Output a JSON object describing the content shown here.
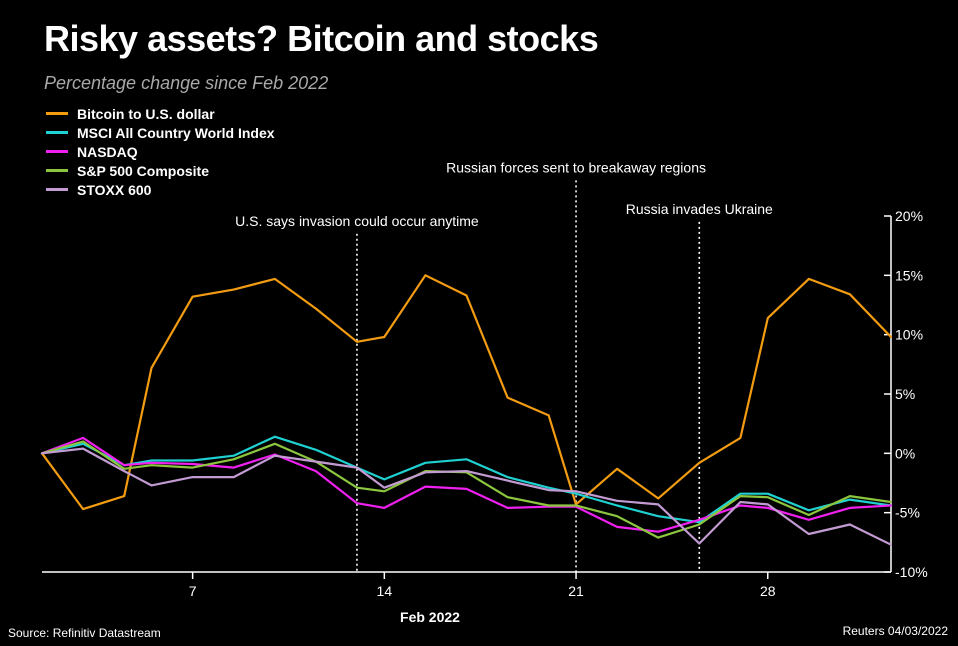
{
  "title": "Risky assets? Bitcoin and stocks",
  "subtitle": "Percentage change since Feb 2022",
  "source": "Source: Refinitiv Datastream",
  "credit": "Reuters 04/03/2022",
  "chart_data": {
    "type": "line",
    "xlabel": "Feb 2022",
    "x_ticks": [
      {
        "day": 7,
        "label": "7"
      },
      {
        "day": 14,
        "label": "14"
      },
      {
        "day": 21,
        "label": "21"
      },
      {
        "day": 28,
        "label": "28"
      }
    ],
    "xlim": [
      1.5,
      32.5
    ],
    "ylim": [
      -10,
      20
    ],
    "y_ticks": [
      {
        "value": 20,
        "label": "20%"
      },
      {
        "value": 15,
        "label": "15%"
      },
      {
        "value": 10,
        "label": "10%"
      },
      {
        "value": 5,
        "label": "5%"
      },
      {
        "value": 0,
        "label": "0%"
      },
      {
        "value": -5,
        "label": "-5%"
      },
      {
        "value": -10,
        "label": "-10%"
      }
    ],
    "x": [
      1.5,
      3,
      4.5,
      5.5,
      7,
      8.5,
      10,
      11.5,
      13,
      14,
      15.5,
      17,
      18.5,
      20,
      21,
      22.5,
      24,
      25.5,
      27,
      28,
      29.5,
      31,
      32.5
    ],
    "series": [
      {
        "name": "Bitcoin to U.S. dollar",
        "color": "#f39c12",
        "values": [
          0,
          -4.7,
          -3.6,
          7.2,
          13.2,
          13.8,
          14.7,
          12.2,
          9.4,
          9.8,
          15.0,
          13.3,
          4.7,
          3.2,
          -4.3,
          -1.3,
          -3.8,
          -0.8,
          1.3,
          11.4,
          14.7,
          13.4,
          9.8
        ]
      },
      {
        "name": "MSCI All Country World Index",
        "color": "#1fd1d1",
        "values": [
          0,
          0.8,
          -1.0,
          -0.6,
          -0.6,
          -0.2,
          1.4,
          0.3,
          -1.2,
          -2.2,
          -0.8,
          -0.5,
          -2.0,
          -2.9,
          -3.4,
          -4.4,
          -5.3,
          -5.8,
          -3.4,
          -3.4,
          -4.8,
          -3.9,
          -4.4
        ]
      },
      {
        "name": "NASDAQ",
        "color": "#f020f0",
        "values": [
          0,
          1.3,
          -1.0,
          -0.8,
          -0.9,
          -1.2,
          -0.1,
          -1.5,
          -4.2,
          -4.6,
          -2.8,
          -3.0,
          -4.6,
          -4.5,
          -4.5,
          -6.2,
          -6.6,
          -5.6,
          -4.4,
          -4.6,
          -5.6,
          -4.6,
          -4.4
        ]
      },
      {
        "name": "S&P 500 Composite",
        "color": "#8cc63f",
        "values": [
          0,
          1.0,
          -1.3,
          -1.0,
          -1.2,
          -0.5,
          0.8,
          -0.7,
          -2.9,
          -3.2,
          -1.5,
          -1.6,
          -3.7,
          -4.4,
          -4.4,
          -5.3,
          -7.1,
          -6.0,
          -3.6,
          -3.7,
          -5.2,
          -3.6,
          -4.1
        ]
      },
      {
        "name": "STOXX 600",
        "color": "#c39bd3",
        "values": [
          0,
          0.4,
          -1.5,
          -2.7,
          -2.0,
          -2.0,
          -0.2,
          -0.7,
          -1.2,
          -2.9,
          -1.6,
          -1.5,
          -2.3,
          -3.1,
          -3.2,
          -4.0,
          -4.3,
          -7.6,
          -4.1,
          -4.3,
          -6.8,
          -6.0,
          -7.7
        ]
      }
    ],
    "annotations": [
      {
        "day": 13,
        "text": "U.S. says invasion could occur anytime",
        "top_value": 18.5
      },
      {
        "day": 21,
        "text": "Russian forces sent to breakaway regions",
        "top_value": 23.0
      },
      {
        "day": 25.5,
        "text": "Russia invades Ukraine",
        "top_value": 19.5
      }
    ],
    "legend_position": "top-left",
    "grid": false
  }
}
